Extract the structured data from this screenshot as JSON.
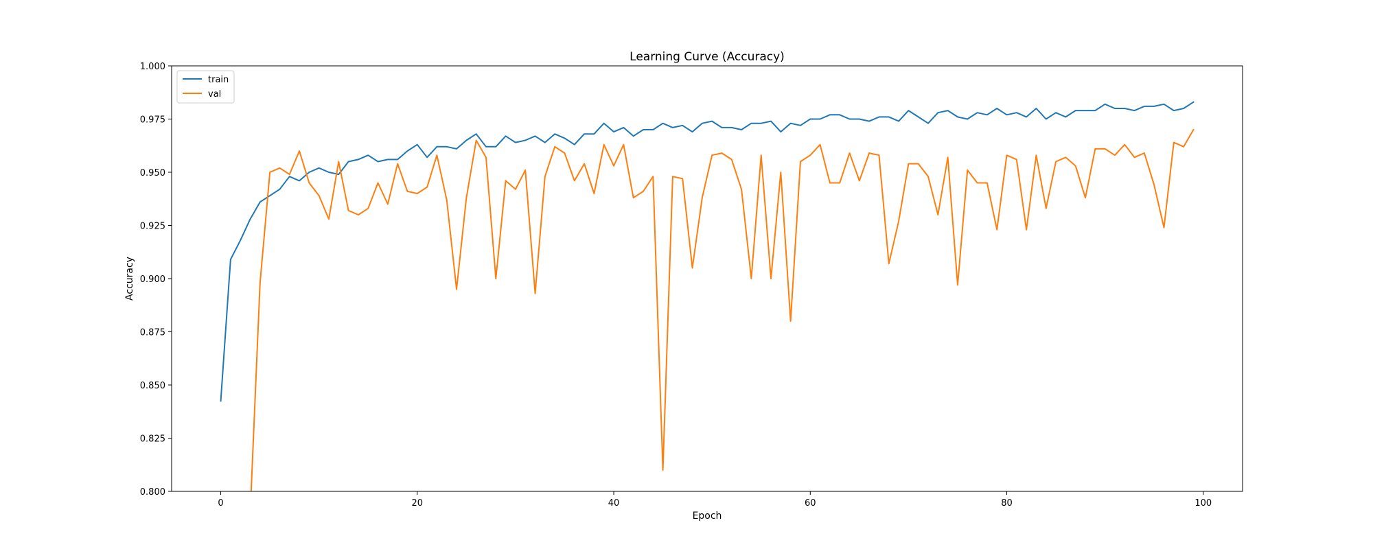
{
  "chart_data": {
    "type": "line",
    "title": "Learning Curve (Accuracy)",
    "xlabel": "Epoch",
    "ylabel": "Accuracy",
    "xlim": [
      -5,
      104
    ],
    "ylim": [
      0.8,
      1.0
    ],
    "x_ticks": [
      0,
      20,
      40,
      60,
      80,
      100
    ],
    "x_tick_labels": [
      "0",
      "20",
      "40",
      "60",
      "80",
      "100"
    ],
    "y_ticks": [
      0.8,
      0.825,
      0.85,
      0.875,
      0.9,
      0.925,
      0.95,
      0.975,
      1.0
    ],
    "y_tick_labels": [
      "0.800",
      "0.825",
      "0.850",
      "0.875",
      "0.900",
      "0.925",
      "0.950",
      "0.975",
      "1.000"
    ],
    "grid": false,
    "legend_position": "upper-left",
    "series": [
      {
        "name": "train",
        "color": "#1f77b4",
        "x": [
          0,
          1,
          2,
          3,
          4,
          5,
          6,
          7,
          8,
          9,
          10,
          11,
          12,
          13,
          14,
          15,
          16,
          17,
          18,
          19,
          20,
          21,
          22,
          23,
          24,
          25,
          26,
          27,
          28,
          29,
          30,
          31,
          32,
          33,
          34,
          35,
          36,
          37,
          38,
          39,
          40,
          41,
          42,
          43,
          44,
          45,
          46,
          47,
          48,
          49,
          50,
          51,
          52,
          53,
          54,
          55,
          56,
          57,
          58,
          59,
          60,
          61,
          62,
          63,
          64,
          65,
          66,
          67,
          68,
          69,
          70,
          71,
          72,
          73,
          74,
          75,
          76,
          77,
          78,
          79,
          80,
          81,
          82,
          83,
          84,
          85,
          86,
          87,
          88,
          89,
          90,
          91,
          92,
          93,
          94,
          95,
          96,
          97,
          98,
          99
        ],
        "values": [
          0.8425,
          0.909,
          0.918,
          0.928,
          0.936,
          0.939,
          0.942,
          0.948,
          0.946,
          0.95,
          0.952,
          0.95,
          0.949,
          0.955,
          0.956,
          0.958,
          0.955,
          0.956,
          0.956,
          0.96,
          0.963,
          0.957,
          0.962,
          0.962,
          0.961,
          0.965,
          0.968,
          0.962,
          0.962,
          0.967,
          0.964,
          0.965,
          0.967,
          0.964,
          0.968,
          0.966,
          0.963,
          0.968,
          0.968,
          0.973,
          0.969,
          0.971,
          0.967,
          0.97,
          0.97,
          0.973,
          0.971,
          0.972,
          0.969,
          0.973,
          0.974,
          0.971,
          0.971,
          0.97,
          0.973,
          0.973,
          0.974,
          0.969,
          0.973,
          0.972,
          0.975,
          0.975,
          0.977,
          0.977,
          0.975,
          0.975,
          0.974,
          0.976,
          0.976,
          0.974,
          0.979,
          0.976,
          0.973,
          0.978,
          0.979,
          0.976,
          0.975,
          0.978,
          0.977,
          0.98,
          0.977,
          0.978,
          0.976,
          0.98,
          0.975,
          0.978,
          0.976,
          0.979,
          0.979,
          0.979,
          0.982,
          0.98,
          0.98,
          0.979,
          0.981,
          0.981,
          0.982,
          0.979,
          0.98,
          0.983
        ]
      },
      {
        "name": "val",
        "color": "#ff7f0e",
        "x": [
          3,
          4,
          5,
          6,
          7,
          8,
          9,
          10,
          11,
          12,
          13,
          14,
          15,
          16,
          17,
          18,
          19,
          20,
          21,
          22,
          23,
          24,
          25,
          26,
          27,
          28,
          29,
          30,
          31,
          32,
          33,
          34,
          35,
          36,
          37,
          38,
          39,
          40,
          41,
          42,
          43,
          44,
          45,
          46,
          47,
          48,
          49,
          50,
          51,
          52,
          53,
          54,
          55,
          56,
          57,
          58,
          59,
          60,
          61,
          62,
          63,
          64,
          65,
          66,
          67,
          68,
          69,
          70,
          71,
          72,
          73,
          74,
          75,
          76,
          77,
          78,
          79,
          80,
          81,
          82,
          83,
          84,
          85,
          86,
          87,
          88,
          89,
          90,
          91,
          92,
          93,
          94,
          95,
          96,
          97,
          98,
          99
        ],
        "values": [
          0.79,
          0.898,
          0.95,
          0.952,
          0.949,
          0.96,
          0.945,
          0.939,
          0.928,
          0.955,
          0.932,
          0.93,
          0.933,
          0.945,
          0.935,
          0.954,
          0.941,
          0.94,
          0.943,
          0.958,
          0.937,
          0.895,
          0.938,
          0.965,
          0.957,
          0.9,
          0.946,
          0.942,
          0.951,
          0.893,
          0.948,
          0.962,
          0.959,
          0.946,
          0.954,
          0.94,
          0.963,
          0.953,
          0.963,
          0.938,
          0.941,
          0.948,
          0.81,
          0.948,
          0.947,
          0.905,
          0.938,
          0.958,
          0.959,
          0.956,
          0.942,
          0.9,
          0.958,
          0.9,
          0.95,
          0.88,
          0.955,
          0.958,
          0.963,
          0.945,
          0.945,
          0.959,
          0.946,
          0.959,
          0.958,
          0.907,
          0.927,
          0.954,
          0.954,
          0.948,
          0.93,
          0.957,
          0.897,
          0.951,
          0.945,
          0.945,
          0.923,
          0.958,
          0.956,
          0.923,
          0.958,
          0.933,
          0.955,
          0.957,
          0.953,
          0.938,
          0.961,
          0.961,
          0.958,
          0.963,
          0.957,
          0.959,
          0.944,
          0.924,
          0.964,
          0.962,
          0.97
        ]
      }
    ]
  }
}
